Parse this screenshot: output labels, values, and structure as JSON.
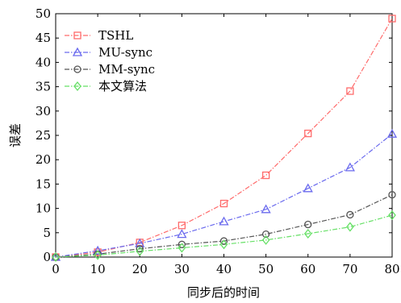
{
  "chart_data": {
    "type": "line",
    "xlabel": "同步后的时间",
    "ylabel": "误差",
    "xlim": [
      0,
      80
    ],
    "ylim": [
      0,
      50
    ],
    "xticks": [
      0,
      10,
      20,
      30,
      40,
      50,
      60,
      70,
      80
    ],
    "yticks": [
      0,
      5,
      10,
      15,
      20,
      25,
      30,
      35,
      40,
      45,
      50
    ],
    "legend_position": "top-left",
    "series": [
      {
        "name": "TSHL",
        "color": "#ff6b6b",
        "marker": "square",
        "x": [
          0,
          10,
          20,
          30,
          40,
          50,
          60,
          70,
          80
        ],
        "y": [
          0,
          1.0,
          3.0,
          6.5,
          11.0,
          16.8,
          25.4,
          34.1,
          49.0
        ]
      },
      {
        "name": "MU-sync",
        "color": "#6a6aee",
        "marker": "triangle",
        "x": [
          0,
          10,
          20,
          30,
          40,
          50,
          60,
          70,
          80
        ],
        "y": [
          0,
          1.3,
          2.8,
          4.7,
          7.3,
          9.8,
          14.1,
          18.4,
          25.3
        ]
      },
      {
        "name": "MM-sync",
        "color": "#555555",
        "marker": "circle",
        "x": [
          0,
          10,
          20,
          30,
          40,
          50,
          60,
          70,
          80
        ],
        "y": [
          0,
          0.6,
          1.7,
          2.6,
          3.3,
          4.7,
          6.7,
          8.7,
          12.8
        ]
      },
      {
        "name": "本文算法",
        "color": "#66e066",
        "marker": "diamond",
        "x": [
          0,
          10,
          20,
          30,
          40,
          50,
          60,
          70,
          80
        ],
        "y": [
          0,
          0.4,
          1.2,
          1.9,
          2.6,
          3.5,
          4.8,
          6.2,
          8.6
        ]
      }
    ]
  }
}
